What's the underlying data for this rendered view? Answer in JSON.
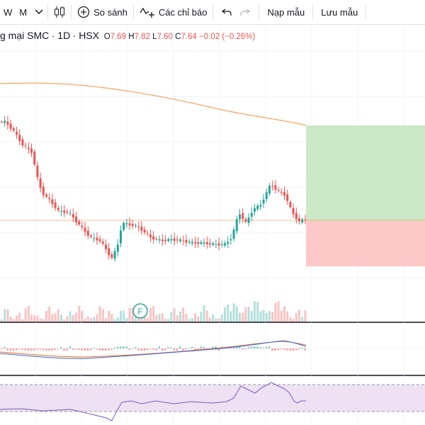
{
  "toolbar": {
    "intervals": [
      "W",
      "M"
    ],
    "compare_label": "So sánh",
    "indicators_label": "Các chỉ báo",
    "load_template_label": "Nạp mẫu",
    "save_template_label": "Lưu mẫu"
  },
  "legend": {
    "symbol_title": "g mại SMC",
    "interval": "1D",
    "exchange": "HSX",
    "open_label": "O",
    "open": "7.69",
    "high_label": "H",
    "high": "7.82",
    "low_label": "L",
    "low": "7.60",
    "close_label": "C",
    "close": "7.64",
    "change": "−0.02 (−0.26%)"
  },
  "marker": {
    "label": "F"
  },
  "colors": {
    "up": "#26a69a",
    "down": "#ef5350",
    "ma_line": "#f7a35c",
    "target_zone": "#cbe9c7",
    "stop_zone": "#fcc9c8",
    "rsi_band": "#ede1f3",
    "rsi_line": "#7e57c2",
    "macd_line": "#2962ff",
    "signal_line": "#ff6d00"
  }
}
